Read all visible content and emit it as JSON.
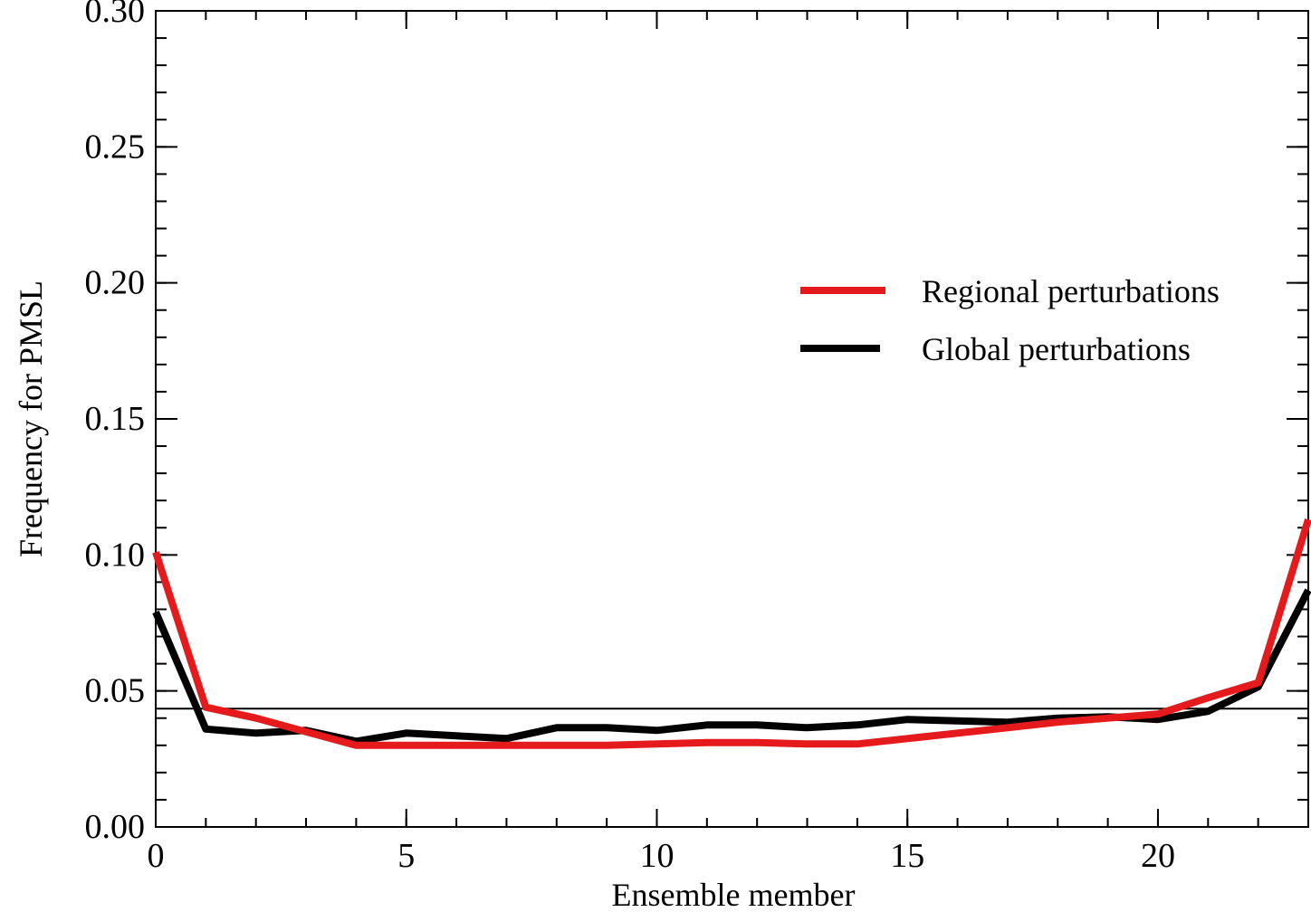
{
  "chart_data": {
    "type": "line",
    "title": "",
    "xlabel": "Ensemble member",
    "ylabel": "Frequency for PMSL",
    "xlim": [
      0,
      23
    ],
    "ylim": [
      0,
      0.3
    ],
    "x_ticks": [
      0,
      5,
      10,
      15,
      20
    ],
    "x_tick_labels": [
      "0",
      "5",
      "10",
      "15",
      "20"
    ],
    "y_ticks": [
      0,
      0.05,
      0.1,
      0.15,
      0.2,
      0.25,
      0.3
    ],
    "y_tick_labels": [
      "0.00",
      "0.05",
      "0.10",
      "0.15",
      "0.20",
      "0.25",
      "0.30"
    ],
    "x_minor_step": 1,
    "y_minor_step": 0.01,
    "grid": false,
    "legend_position": "middle-right",
    "reference_line": {
      "y": 0.0435,
      "color": "#000000"
    },
    "x": [
      0,
      1,
      2,
      3,
      4,
      5,
      6,
      7,
      8,
      9,
      10,
      11,
      12,
      13,
      14,
      15,
      16,
      17,
      18,
      19,
      20,
      21,
      22,
      23
    ],
    "series": [
      {
        "name": "Regional perturbations",
        "color": "#e41a1c",
        "values": [
          0.101,
          0.044,
          0.04,
          0.035,
          0.03,
          0.03,
          0.03,
          0.03,
          0.03,
          0.03,
          0.0305,
          0.031,
          0.031,
          0.0305,
          0.0305,
          0.0325,
          0.0345,
          0.0365,
          0.0385,
          0.04,
          0.0415,
          0.0475,
          0.053,
          0.113
        ]
      },
      {
        "name": "Global perturbations",
        "color": "#000000",
        "values": [
          0.079,
          0.036,
          0.0345,
          0.0355,
          0.0315,
          0.0345,
          0.0335,
          0.0325,
          0.0365,
          0.0365,
          0.0355,
          0.0375,
          0.0375,
          0.0365,
          0.0375,
          0.0395,
          0.039,
          0.0385,
          0.04,
          0.0405,
          0.0395,
          0.0425,
          0.0515,
          0.087
        ]
      }
    ]
  }
}
